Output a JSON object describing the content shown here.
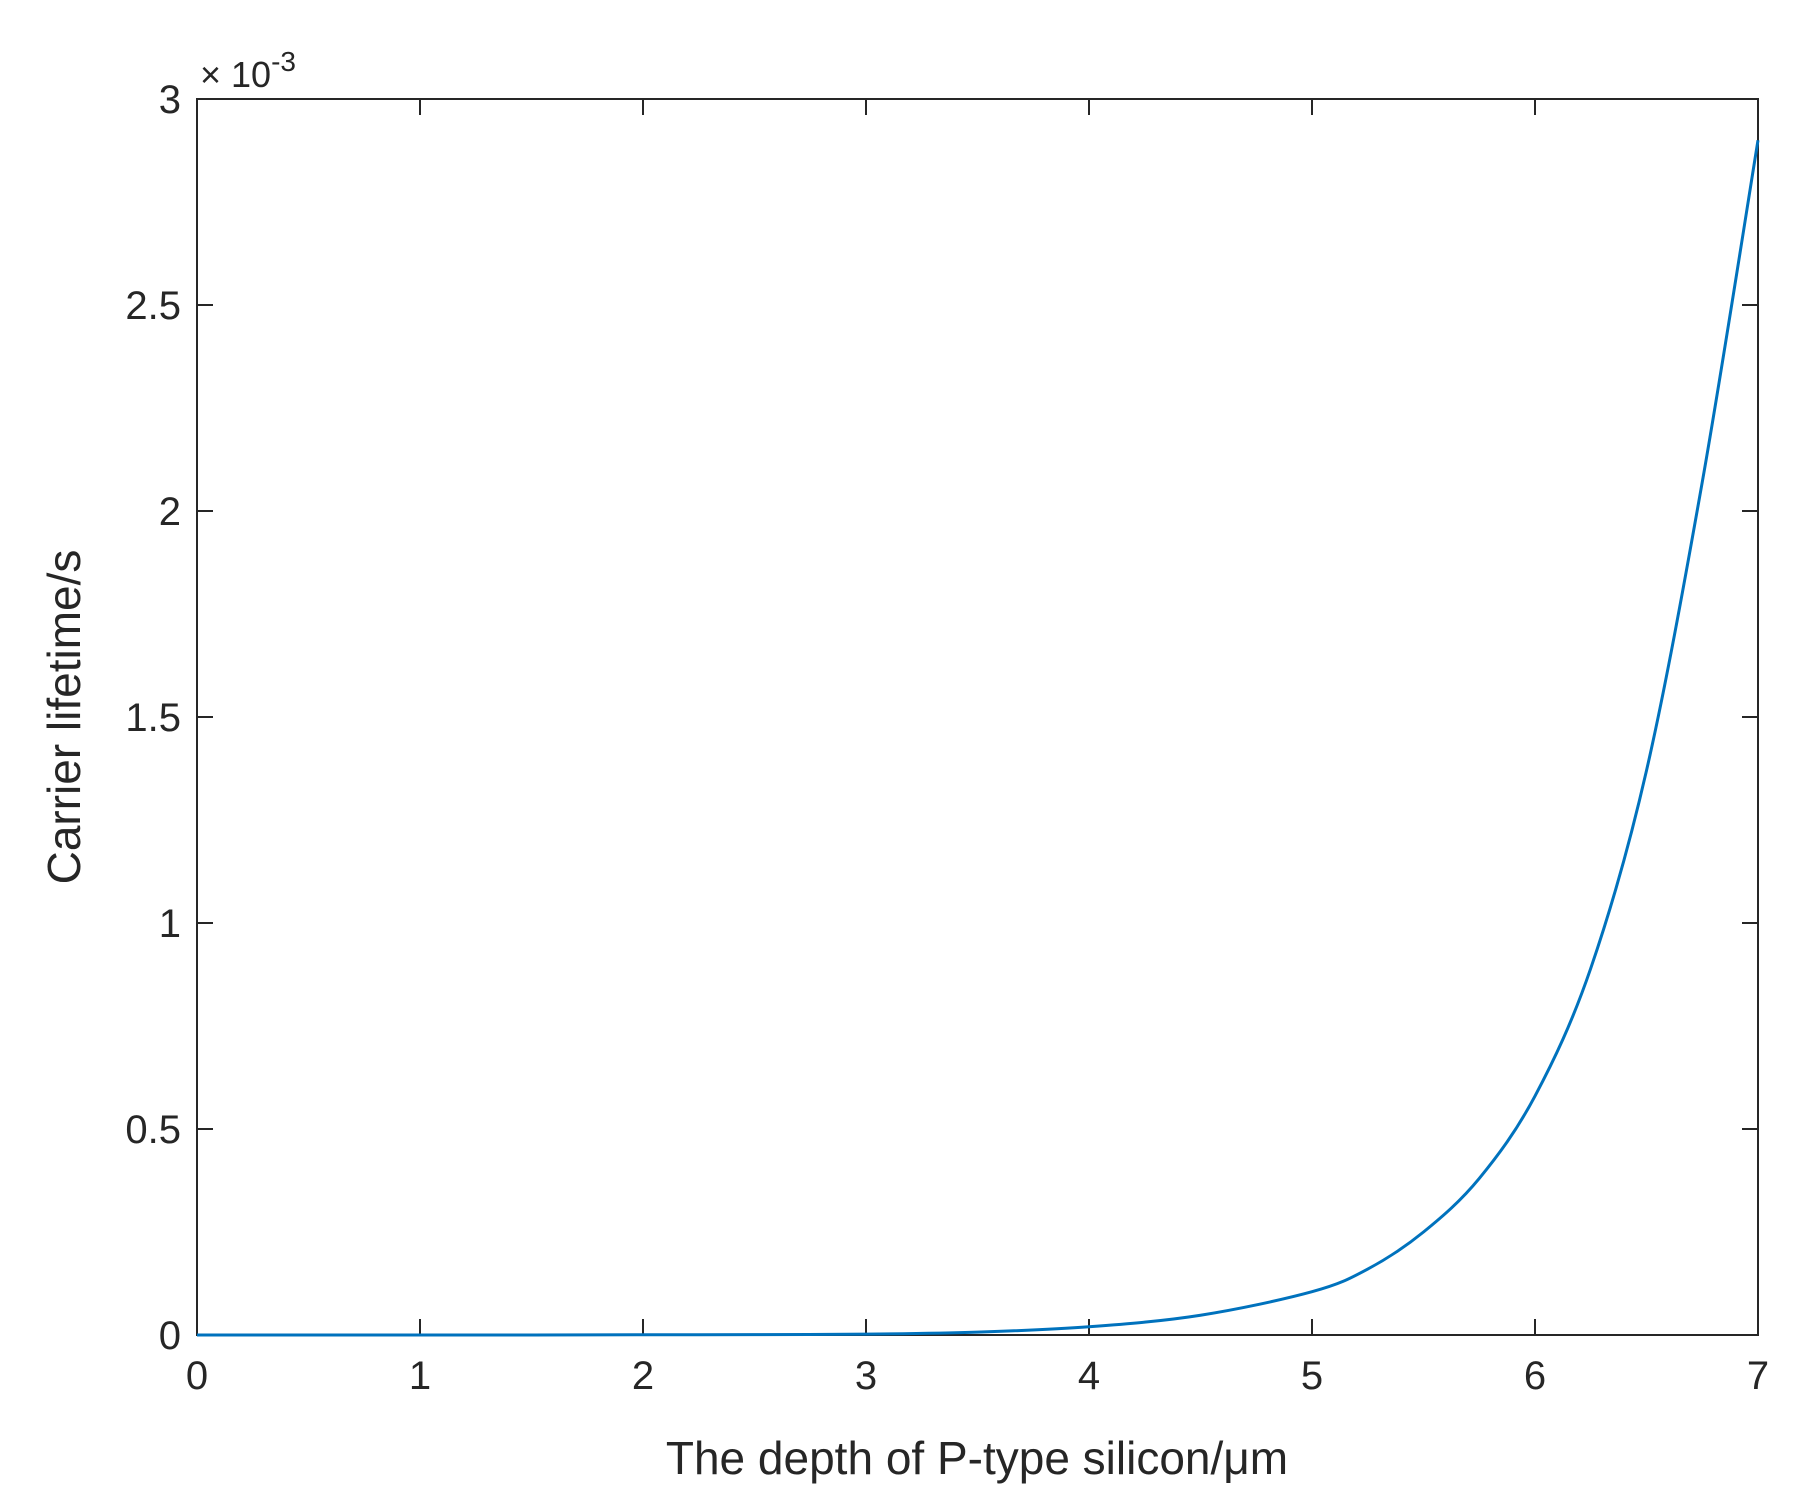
{
  "chart_data": {
    "type": "line",
    "title": "",
    "xlabel": "The depth of P-type silicon/μm",
    "ylabel": "Carrier lifetime/s",
    "y_multiplier": "× 10",
    "y_exponent": "-3",
    "xlim": [
      0,
      7
    ],
    "ylim": [
      0,
      0.003
    ],
    "x_ticks": [
      0,
      1,
      2,
      3,
      4,
      5,
      6,
      7
    ],
    "x_tick_labels": [
      "0",
      "1",
      "2",
      "3",
      "4",
      "5",
      "6",
      "7"
    ],
    "y_ticks": [
      0,
      0.0005,
      0.001,
      0.0015,
      0.002,
      0.0025,
      0.003
    ],
    "y_tick_labels": [
      "0",
      "0.5",
      "1",
      "1.5",
      "2",
      "2.5",
      "3"
    ],
    "grid": false,
    "line_color": "#0072BD",
    "series": [
      {
        "x": [
          0,
          0.5,
          1,
          1.5,
          2,
          2.5,
          3,
          3.5,
          4,
          4.5,
          5,
          5.25,
          5.5,
          5.75,
          6,
          6.25,
          6.5,
          6.75,
          7
        ],
        "y": [
          0,
          0,
          0,
          0,
          5e-07,
          1e-06,
          2e-06,
          7e-06,
          2e-05,
          4.8e-05,
          0.000105,
          0.00016,
          0.00025,
          0.00038,
          0.00058,
          0.00089,
          0.00137,
          0.00207,
          0.0029
        ]
      }
    ]
  }
}
